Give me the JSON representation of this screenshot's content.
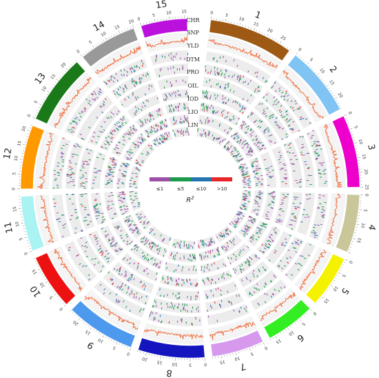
{
  "chromosomes": [
    {
      "label": "1",
      "color": "#9e5a14",
      "len": 29,
      "ticks": [
        "0",
        "5",
        "10",
        "15",
        "20",
        "25"
      ]
    },
    {
      "label": "2",
      "color": "#7fc4f2",
      "len": 24,
      "ticks": [
        "0",
        "5",
        "10",
        "15",
        "20"
      ]
    },
    {
      "label": "3",
      "color": "#ee00cc",
      "len": 25,
      "ticks": [
        "0",
        "5",
        "10",
        "15",
        "20",
        "25"
      ]
    },
    {
      "label": "4",
      "color": "#c9c79a",
      "len": 20,
      "ticks": [
        "0",
        "5",
        "10",
        "15"
      ]
    },
    {
      "label": "5",
      "color": "#f5f200",
      "len": 18,
      "ticks": [
        "0",
        "5",
        "10",
        "15"
      ]
    },
    {
      "label": "6",
      "color": "#33ee22",
      "len": 17,
      "ticks": [
        "0",
        "5",
        "10",
        "15"
      ]
    },
    {
      "label": "7",
      "color": "#d699ee",
      "len": 18,
      "ticks": [
        "0",
        "5",
        "10",
        "15"
      ]
    },
    {
      "label": "8",
      "color": "#1515c0",
      "len": 23,
      "ticks": [
        "0",
        "5",
        "10",
        "15",
        "20"
      ]
    },
    {
      "label": "9",
      "color": "#4d99ee",
      "len": 24,
      "ticks": [
        "0",
        "5",
        "10",
        "15",
        "20"
      ]
    },
    {
      "label": "10",
      "color": "#ee1111",
      "len": 19,
      "ticks": [
        "0",
        "5",
        "10",
        "15"
      ]
    },
    {
      "label": "11",
      "color": "#a9f3f3",
      "len": 19,
      "ticks": [
        "0",
        "5",
        "10",
        "15"
      ]
    },
    {
      "label": "12",
      "color": "#ff9900",
      "len": 22,
      "ticks": [
        "0",
        "5",
        "10",
        "15",
        "20"
      ]
    },
    {
      "label": "13",
      "color": "#1a7a1a",
      "len": 24,
      "ticks": [
        "0",
        "5",
        "10",
        "15",
        "20"
      ]
    },
    {
      "label": "14",
      "color": "#999999",
      "len": 20,
      "ticks": [
        "0",
        "5",
        "10",
        "15",
        "20"
      ]
    },
    {
      "label": "15",
      "color": "#bb11dd",
      "len": 16,
      "ticks": [
        "0",
        "5",
        "10",
        "15"
      ]
    }
  ],
  "tracks": [
    "CHR",
    "SNP",
    "YLD",
    "DTM",
    "PRO",
    "OIL",
    "IOD",
    "LIO",
    "LIN"
  ],
  "legend": {
    "title": "R",
    "title_sup": "2",
    "items": [
      {
        "label": "≤1",
        "color": "#9b4fa5"
      },
      {
        "label": "≤5",
        "color": "#1a9a4a"
      },
      {
        "label": "≤10",
        "color": "#2474b0"
      },
      {
        "label": ">10",
        "color": "#e8272a"
      }
    ]
  },
  "colors": {
    "snp_line": "#ee6a3a",
    "track_bg": "#ececec"
  }
}
